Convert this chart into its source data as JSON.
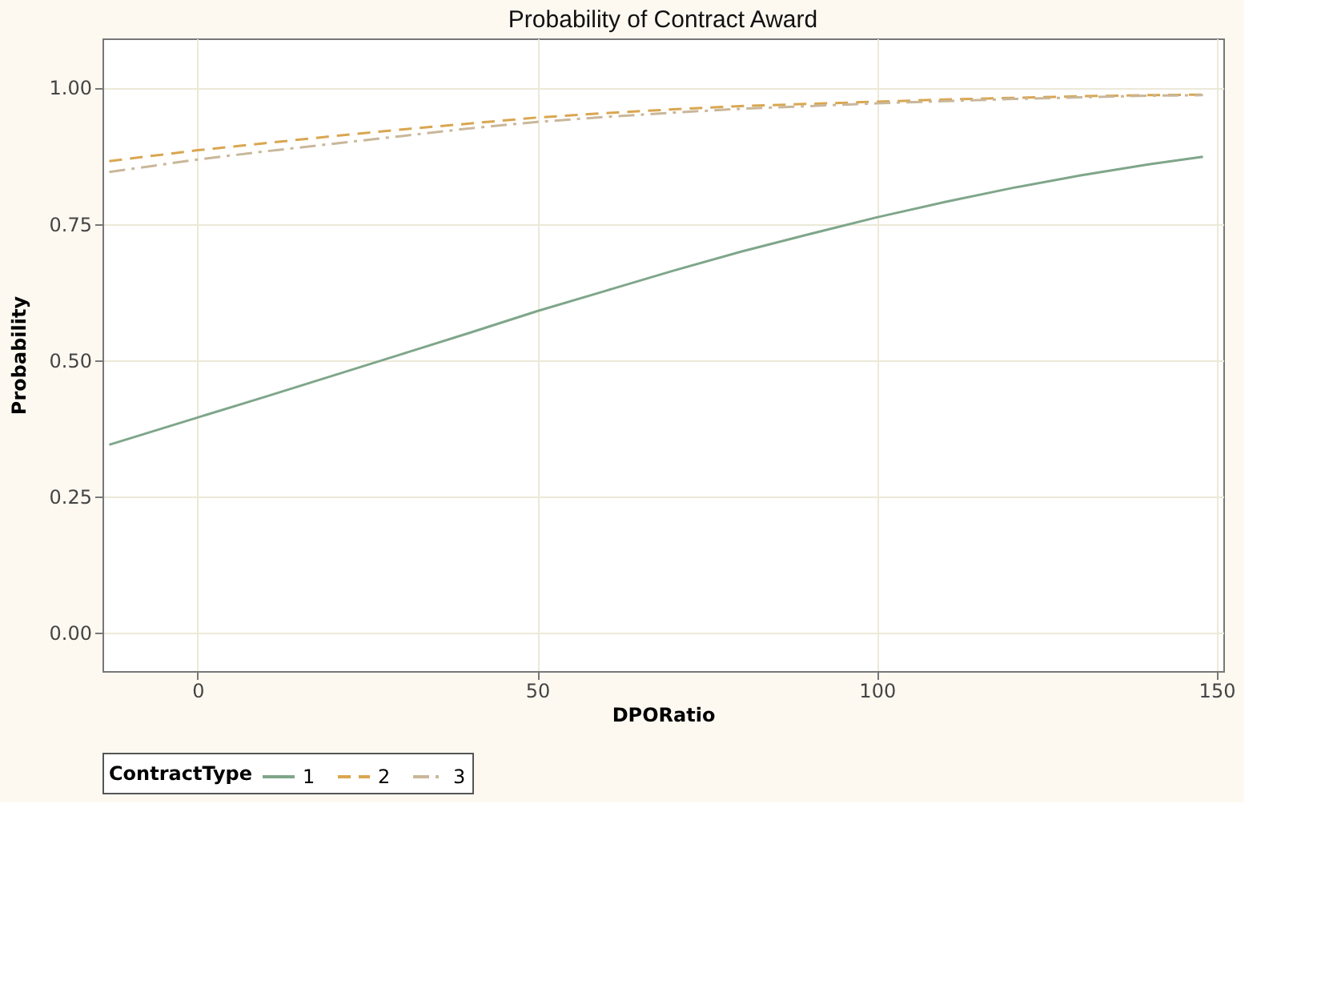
{
  "chart_data": {
    "type": "line",
    "title": "Probability of Contract Award",
    "xlabel": "DPORatio",
    "ylabel": "Probability",
    "legend_title": "ContractType",
    "legend": "bottom",
    "grid": true,
    "marker": "none",
    "x": [
      -13,
      0,
      10,
      20,
      30,
      40,
      50,
      60,
      70,
      80,
      90,
      100,
      110,
      120,
      130,
      140,
      148
    ],
    "xlim": [
      -14,
      151
    ],
    "xticks": [
      0,
      50,
      100,
      150
    ],
    "ylim": [
      -0.07,
      1.09
    ],
    "yticks": [
      {
        "value": 0,
        "label": "0.00"
      },
      {
        "value": 0.25,
        "label": "0.25"
      },
      {
        "value": 0.5,
        "label": "0.50"
      },
      {
        "value": 0.75,
        "label": "0.75"
      },
      {
        "value": 1,
        "label": "1.00"
      }
    ],
    "series": [
      {
        "name": "1",
        "color": "#7fa68a",
        "line_style": "solid",
        "values": [
          0.345,
          0.395,
          0.433,
          0.472,
          0.511,
          0.55,
          0.59,
          0.627,
          0.664,
          0.699,
          0.731,
          0.762,
          0.79,
          0.816,
          0.839,
          0.859,
          0.873
        ]
      },
      {
        "name": "2",
        "color": "#d9a650",
        "line_style": "dashed",
        "values": [
          0.865,
          0.885,
          0.898,
          0.911,
          0.923,
          0.934,
          0.945,
          0.953,
          0.96,
          0.966,
          0.97,
          0.974,
          0.978,
          0.981,
          0.984,
          0.986,
          0.987
        ]
      },
      {
        "name": "3",
        "color": "#c9b79a",
        "line_style": "dashdot",
        "values": [
          0.845,
          0.868,
          0.883,
          0.897,
          0.911,
          0.925,
          0.937,
          0.946,
          0.954,
          0.961,
          0.966,
          0.971,
          0.975,
          0.979,
          0.982,
          0.985,
          0.986
        ]
      }
    ]
  }
}
